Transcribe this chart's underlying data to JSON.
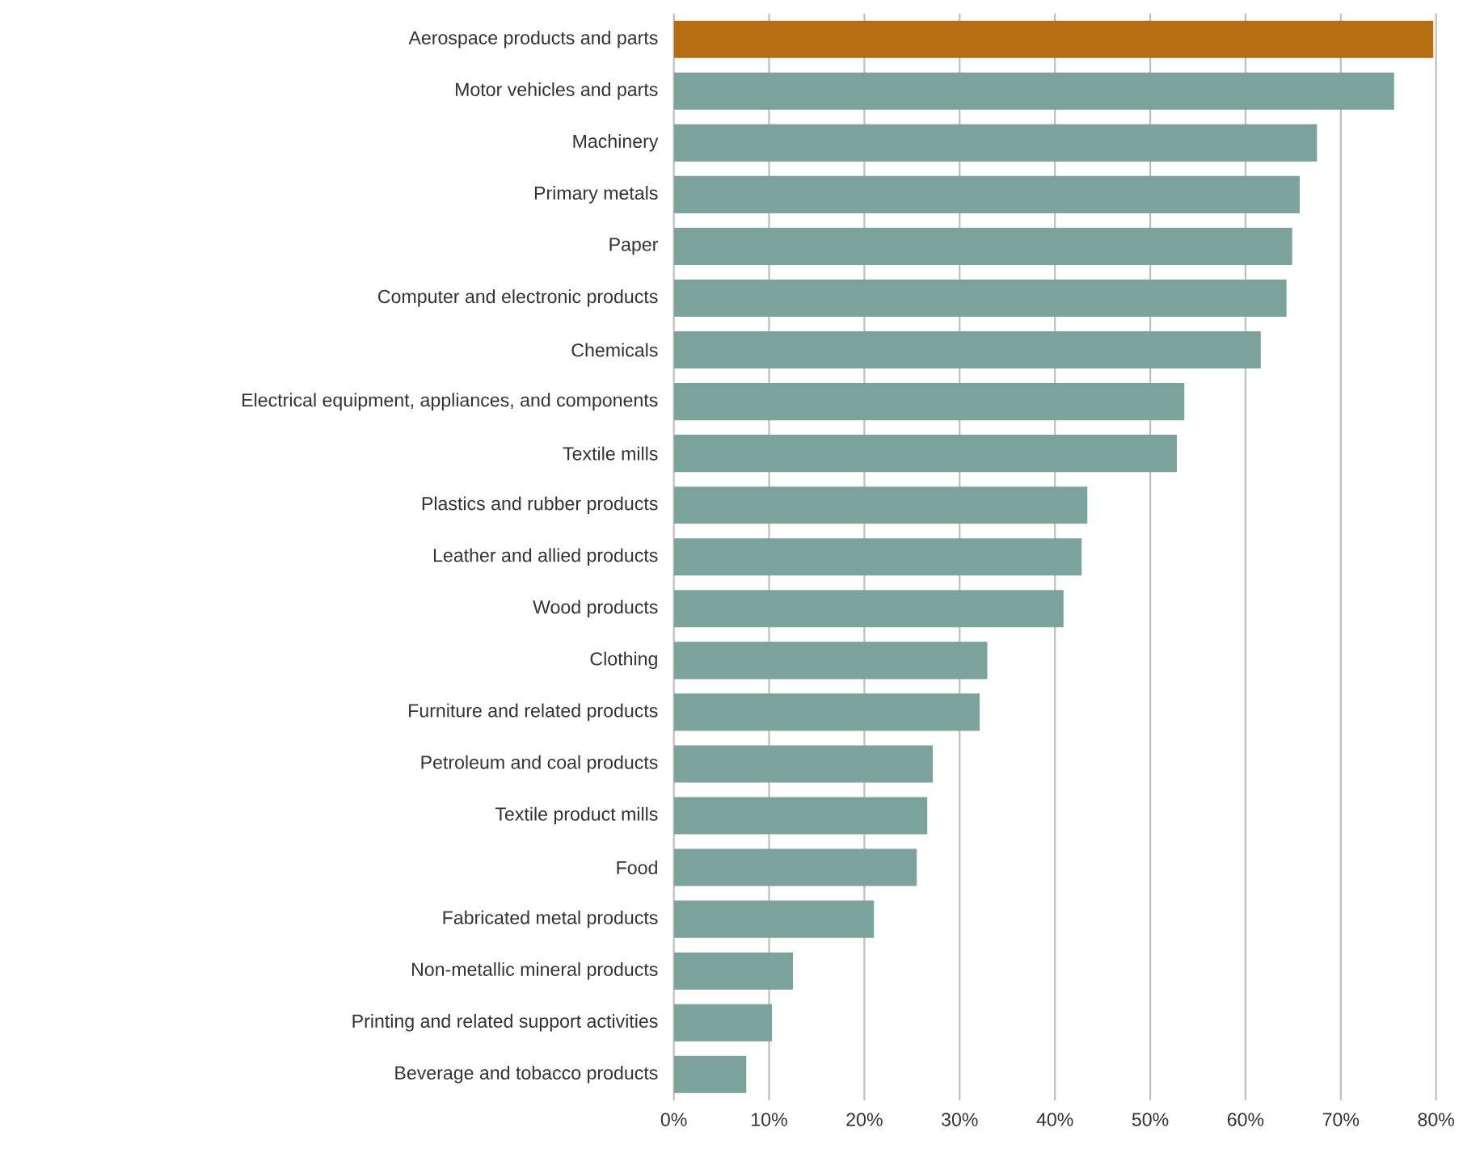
{
  "chart_data": {
    "type": "bar",
    "orientation": "horizontal",
    "categories": [
      "Aerospace products and parts",
      "Motor vehicles and parts",
      "Machinery",
      "Primary metals",
      "Paper",
      "Computer and electronic products",
      "Chemicals",
      "Electrical equipment, appliances, and components",
      "Textile mills",
      "Plastics and rubber products",
      "Leather and allied products",
      "Wood products",
      "Clothing",
      "Furniture and related products",
      "Petroleum and coal products",
      "Textile product mills",
      "Food",
      "Fabricated metal products",
      "Non-metallic mineral products",
      "Printing and related support activities",
      "Beverage and tobacco products"
    ],
    "values": [
      79.7,
      75.6,
      67.5,
      65.7,
      64.9,
      64.3,
      61.6,
      53.6,
      52.8,
      43.4,
      42.8,
      40.9,
      32.9,
      32.1,
      27.2,
      26.6,
      25.5,
      21.0,
      12.5,
      10.3,
      7.6
    ],
    "colors": [
      "#b76e12",
      "#7ca29c",
      "#7ca29c",
      "#7ca29c",
      "#7ca29c",
      "#7ca29c",
      "#7ca29c",
      "#7ca29c",
      "#7ca29c",
      "#7ca29c",
      "#7ca29c",
      "#7ca29c",
      "#7ca29c",
      "#7ca29c",
      "#7ca29c",
      "#7ca29c",
      "#7ca29c",
      "#7ca29c",
      "#7ca29c",
      "#7ca29c",
      "#7ca29c"
    ],
    "xlim": [
      0,
      80
    ],
    "xticks": [
      {
        "value": 0,
        "label": "0%"
      },
      {
        "value": 10,
        "label": "10%"
      },
      {
        "value": 20,
        "label": "20%"
      },
      {
        "value": 30,
        "label": "30%"
      },
      {
        "value": 40,
        "label": "40%"
      },
      {
        "value": 50,
        "label": "50%"
      },
      {
        "value": 60,
        "label": "60%"
      },
      {
        "value": 70,
        "label": "70%"
      },
      {
        "value": 80,
        "label": "80%"
      }
    ],
    "grid": "x"
  }
}
